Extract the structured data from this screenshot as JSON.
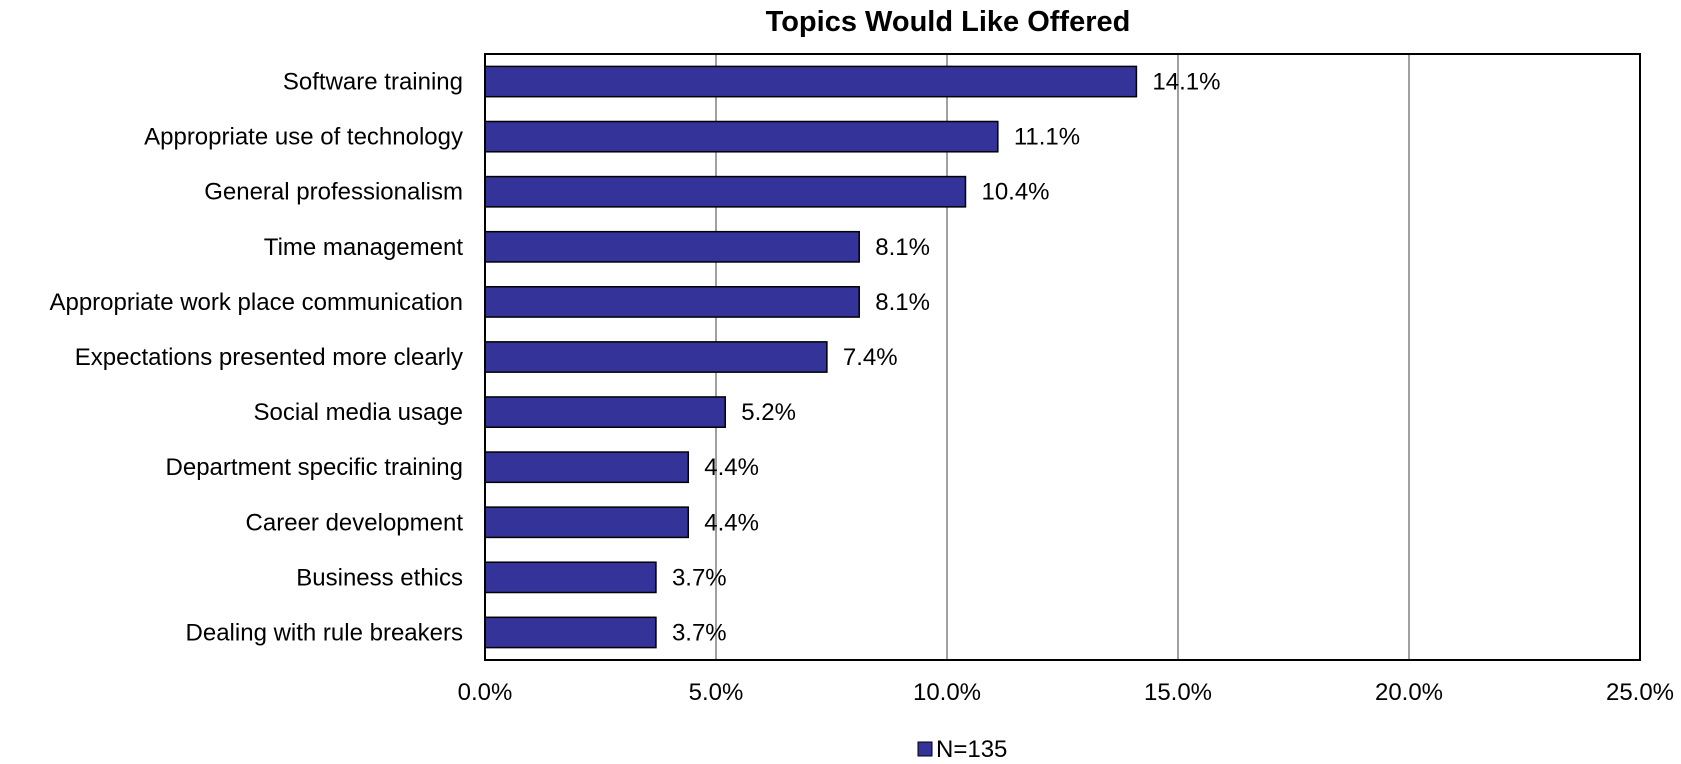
{
  "chart_data": {
    "type": "bar",
    "orientation": "horizontal",
    "title": "Topics Would Like Offered",
    "categories": [
      "Software training",
      "Appropriate use of technology",
      "General professionalism",
      "Time management",
      "Appropriate work place communication",
      "Expectations presented more clearly",
      "Social media usage",
      "Department specific training",
      "Career development",
      "Business ethics",
      "Dealing with rule breakers"
    ],
    "series": [
      {
        "name": "N=135",
        "values": [
          14.1,
          11.1,
          10.4,
          8.1,
          8.1,
          7.4,
          5.2,
          4.4,
          4.4,
          3.7,
          3.7
        ],
        "data_labels": [
          "14.1%",
          "11.1%",
          "10.4%",
          "8.1%",
          "8.1%",
          "7.4%",
          "5.2%",
          "4.4%",
          "4.4%",
          "3.7%",
          "3.7%"
        ]
      }
    ],
    "xlim": [
      0,
      25
    ],
    "x_ticks": [
      0,
      5,
      10,
      15,
      20,
      25
    ],
    "x_tick_labels": [
      "0.0%",
      "5.0%",
      "10.0%",
      "15.0%",
      "20.0%",
      "25.0%"
    ],
    "grid": "vertical",
    "legend_position": "bottom",
    "colors": {
      "bar_fill": "#333399",
      "bar_stroke": "#000000",
      "grid": "#808080",
      "frame": "#000000"
    }
  }
}
